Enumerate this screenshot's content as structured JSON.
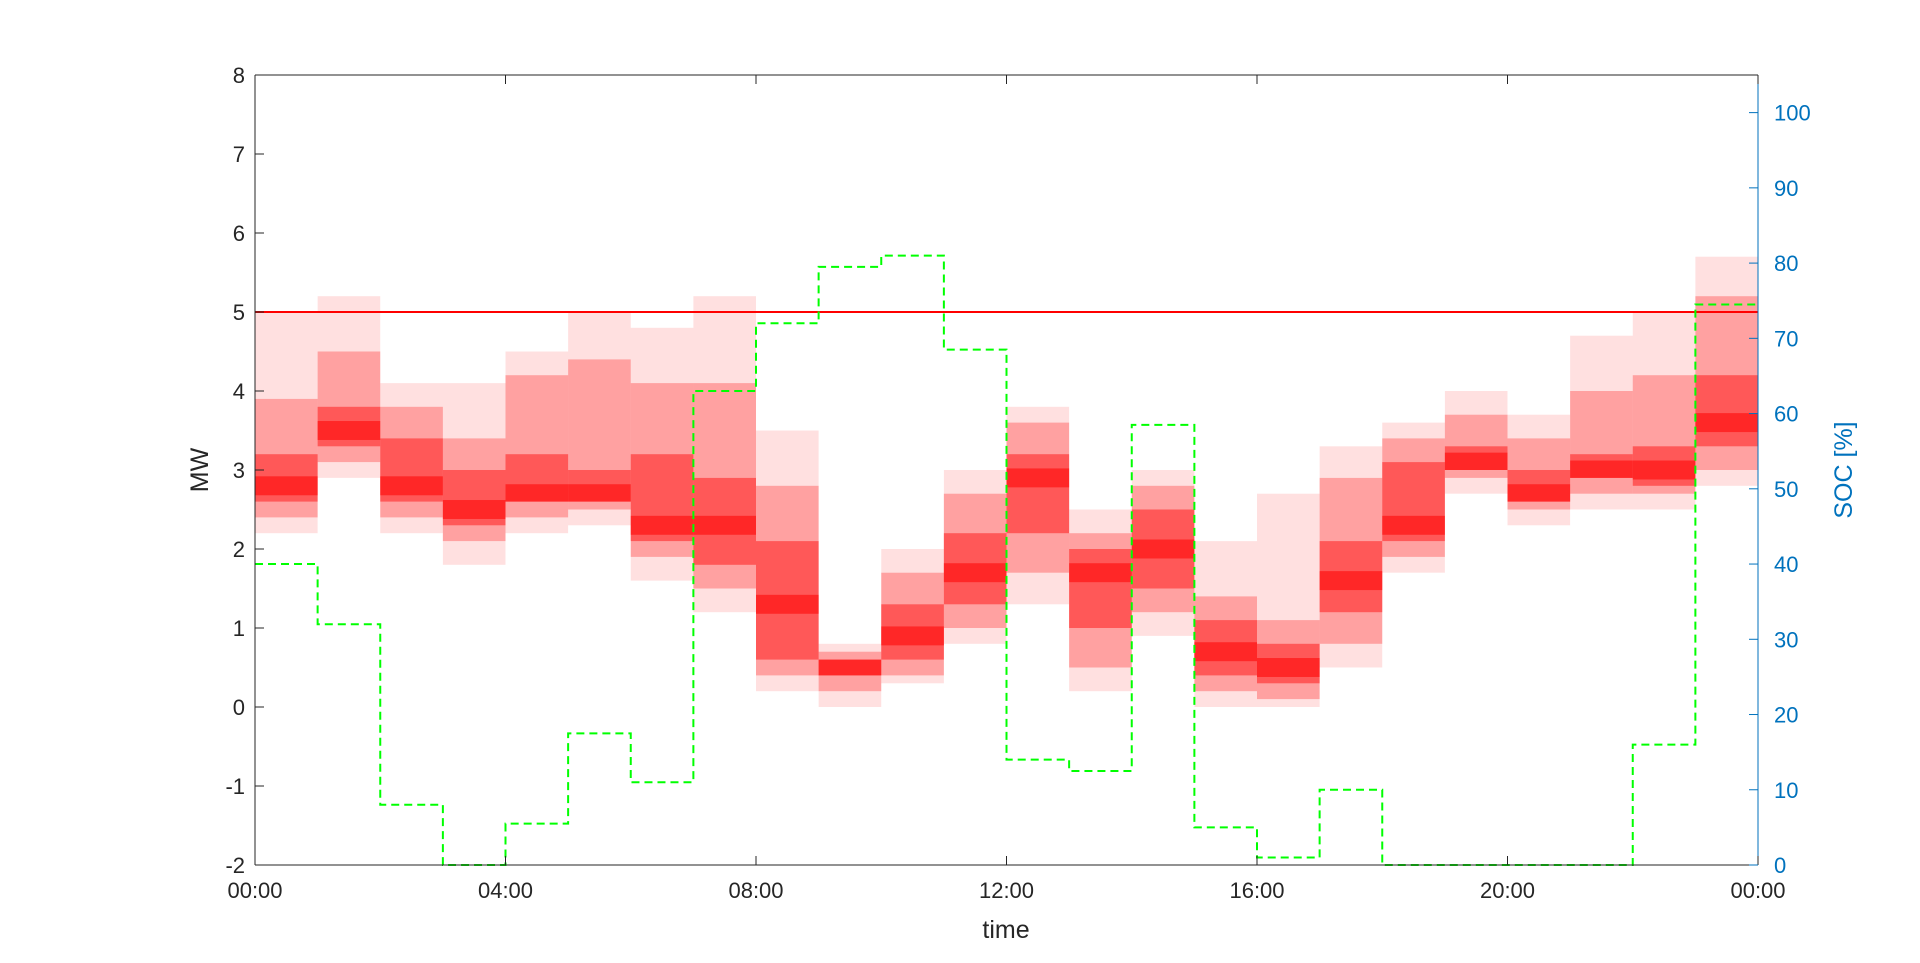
{
  "chart_data": {
    "type": "heatmap",
    "xlabel": "time",
    "ylabel_left": "MW",
    "ylabel_right": "SOC [%]",
    "xlim": [
      0,
      24
    ],
    "ylim_left": [
      -2,
      8
    ],
    "ylim_right": [
      0,
      105
    ],
    "x_tick_values": [
      0,
      4,
      8,
      12,
      16,
      20,
      24
    ],
    "x_tick_labels": [
      "00:00",
      "04:00",
      "08:00",
      "12:00",
      "16:00",
      "20:00",
      "00:00"
    ],
    "y_left_ticks": [
      -2,
      -1,
      0,
      1,
      2,
      3,
      4,
      5,
      6,
      7,
      8
    ],
    "y_left_tick_labels": [
      "-2",
      "-1",
      "0",
      "1",
      "2",
      "3",
      "4",
      "5",
      "6",
      "7",
      "8"
    ],
    "y_right_ticks": [
      0,
      10,
      20,
      30,
      40,
      50,
      60,
      70,
      80,
      90,
      100
    ],
    "y_right_tick_labels": [
      "0",
      "10",
      "20",
      "30",
      "40",
      "50",
      "60",
      "70",
      "80",
      "90",
      "100"
    ],
    "colors": {
      "distribution": "#ff0000",
      "limit_line": "#ff0000",
      "soc_line": "#00ff00",
      "right_axis": "#0072bd",
      "left_axis": "#000000"
    },
    "limit_line": {
      "value": 5.0,
      "axis": "left"
    },
    "distribution_hours": [
      {
        "hour": 0,
        "min": 2.2,
        "p10": 2.4,
        "p25": 2.6,
        "median": 2.8,
        "p75": 3.2,
        "p90": 3.9,
        "max": 5.0
      },
      {
        "hour": 1,
        "min": 2.9,
        "p10": 3.1,
        "p25": 3.3,
        "median": 3.5,
        "p75": 3.8,
        "p90": 4.5,
        "max": 5.2
      },
      {
        "hour": 2,
        "min": 2.2,
        "p10": 2.4,
        "p25": 2.6,
        "median": 2.8,
        "p75": 3.4,
        "p90": 3.8,
        "max": 4.1
      },
      {
        "hour": 3,
        "min": 1.8,
        "p10": 2.1,
        "p25": 2.3,
        "median": 2.5,
        "p75": 3.0,
        "p90": 3.4,
        "max": 4.1
      },
      {
        "hour": 4,
        "min": 2.2,
        "p10": 2.4,
        "p25": 2.6,
        "median": 2.7,
        "p75": 3.2,
        "p90": 4.2,
        "max": 4.5
      },
      {
        "hour": 5,
        "min": 2.3,
        "p10": 2.5,
        "p25": 2.6,
        "median": 2.7,
        "p75": 3.0,
        "p90": 4.4,
        "max": 5.0
      },
      {
        "hour": 6,
        "min": 1.6,
        "p10": 1.9,
        "p25": 2.1,
        "median": 2.3,
        "p75": 3.2,
        "p90": 4.1,
        "max": 4.8
      },
      {
        "hour": 7,
        "min": 1.2,
        "p10": 1.5,
        "p25": 1.8,
        "median": 2.3,
        "p75": 2.9,
        "p90": 4.1,
        "max": 5.2
      },
      {
        "hour": 8,
        "min": 0.2,
        "p10": 0.4,
        "p25": 0.6,
        "median": 1.3,
        "p75": 2.1,
        "p90": 2.8,
        "max": 3.5
      },
      {
        "hour": 9,
        "min": 0.0,
        "p10": 0.2,
        "p25": 0.4,
        "median": 0.5,
        "p75": 0.6,
        "p90": 0.7,
        "max": 0.8
      },
      {
        "hour": 10,
        "min": 0.3,
        "p10": 0.4,
        "p25": 0.6,
        "median": 0.9,
        "p75": 1.3,
        "p90": 1.7,
        "max": 2.0
      },
      {
        "hour": 11,
        "min": 0.8,
        "p10": 1.0,
        "p25": 1.3,
        "median": 1.7,
        "p75": 2.2,
        "p90": 2.7,
        "max": 3.0
      },
      {
        "hour": 12,
        "min": 1.3,
        "p10": 1.7,
        "p25": 2.2,
        "median": 2.9,
        "p75": 3.2,
        "p90": 3.6,
        "max": 3.8
      },
      {
        "hour": 13,
        "min": 0.2,
        "p10": 0.5,
        "p25": 1.0,
        "median": 1.7,
        "p75": 2.0,
        "p90": 2.2,
        "max": 2.5
      },
      {
        "hour": 14,
        "min": 0.9,
        "p10": 1.2,
        "p25": 1.5,
        "median": 2.0,
        "p75": 2.5,
        "p90": 2.8,
        "max": 3.0
      },
      {
        "hour": 15,
        "min": 0.0,
        "p10": 0.2,
        "p25": 0.4,
        "median": 0.7,
        "p75": 1.1,
        "p90": 1.4,
        "max": 2.1
      },
      {
        "hour": 16,
        "min": 0.0,
        "p10": 0.1,
        "p25": 0.3,
        "median": 0.5,
        "p75": 0.8,
        "p90": 1.1,
        "max": 2.7
      },
      {
        "hour": 17,
        "min": 0.5,
        "p10": 0.8,
        "p25": 1.2,
        "median": 1.6,
        "p75": 2.1,
        "p90": 2.9,
        "max": 3.3
      },
      {
        "hour": 18,
        "min": 1.7,
        "p10": 1.9,
        "p25": 2.1,
        "median": 2.3,
        "p75": 3.1,
        "p90": 3.4,
        "max": 3.6
      },
      {
        "hour": 19,
        "min": 2.7,
        "p10": 2.9,
        "p25": 3.0,
        "median": 3.1,
        "p75": 3.3,
        "p90": 3.7,
        "max": 4.0
      },
      {
        "hour": 20,
        "min": 2.3,
        "p10": 2.5,
        "p25": 2.6,
        "median": 2.7,
        "p75": 3.0,
        "p90": 3.4,
        "max": 3.7
      },
      {
        "hour": 21,
        "min": 2.5,
        "p10": 2.7,
        "p25": 2.9,
        "median": 3.0,
        "p75": 3.2,
        "p90": 4.0,
        "max": 4.7
      },
      {
        "hour": 22,
        "min": 2.5,
        "p10": 2.7,
        "p25": 2.8,
        "median": 3.0,
        "p75": 3.3,
        "p90": 4.2,
        "max": 5.0
      },
      {
        "hour": 23,
        "min": 2.8,
        "p10": 3.0,
        "p25": 3.3,
        "median": 3.6,
        "p75": 4.2,
        "p90": 5.2,
        "max": 5.7
      }
    ],
    "soc_series": {
      "axis": "right",
      "style": "dashed-step",
      "x": [
        0,
        1,
        2,
        3,
        4,
        5,
        6,
        7,
        8,
        9,
        10,
        11,
        12,
        13,
        14,
        15,
        16,
        17,
        18,
        19,
        20,
        21,
        22,
        23,
        24
      ],
      "y": [
        40,
        32,
        8,
        0,
        5.5,
        17.5,
        11,
        63,
        72,
        79.5,
        81,
        68.5,
        14,
        12.5,
        58.5,
        5,
        1,
        10,
        0,
        0,
        0,
        0,
        16,
        74.5,
        74.5
      ]
    }
  }
}
